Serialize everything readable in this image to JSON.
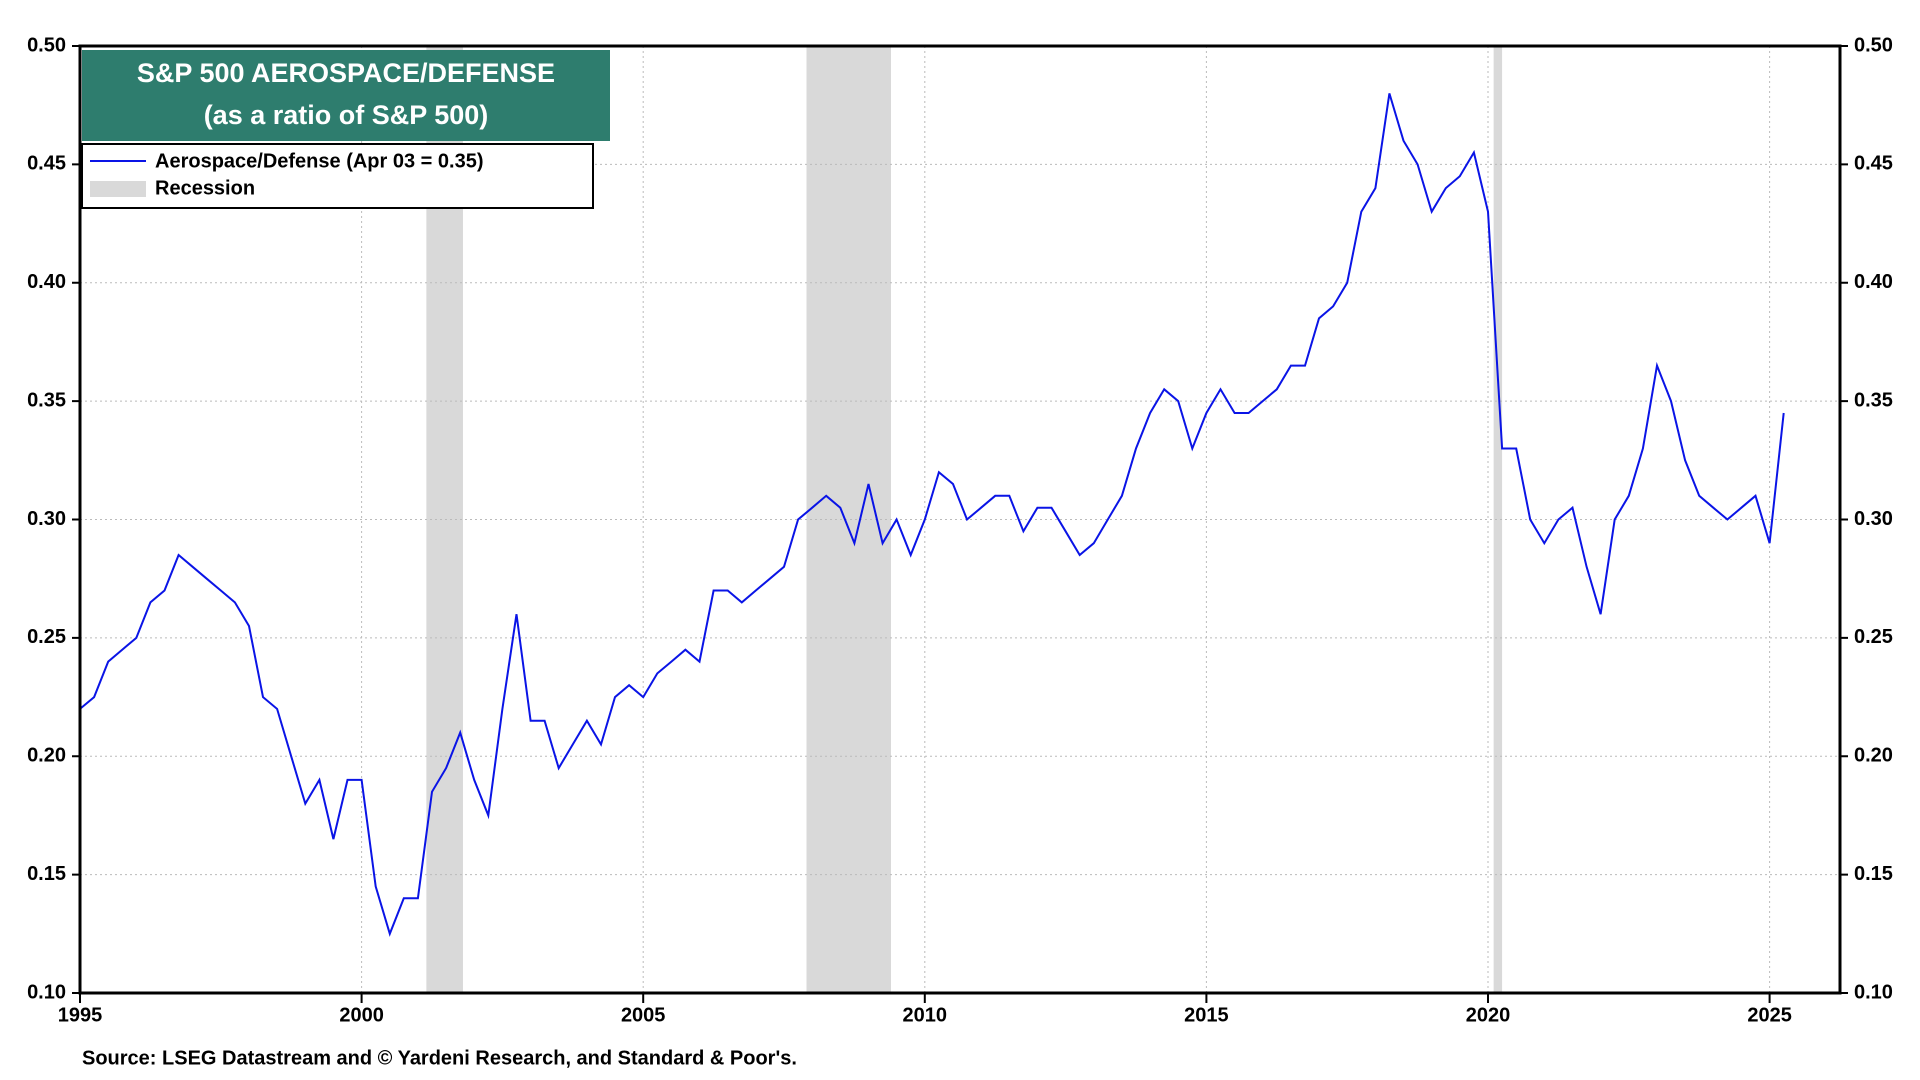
{
  "chart_data": {
    "type": "line",
    "title": "S&P 500 AEROSPACE/DEFENSE",
    "subtitle": "(as a ratio of S&P 500)",
    "source": "Source: LSEG Datastream and © Yardeni Research, and Standard & Poor's.",
    "x": [
      1995.0,
      1995.25,
      1995.5,
      1995.75,
      1996.0,
      1996.25,
      1996.5,
      1996.75,
      1997.0,
      1997.25,
      1997.5,
      1997.75,
      1998.0,
      1998.25,
      1998.5,
      1998.75,
      1999.0,
      1999.25,
      1999.5,
      1999.75,
      2000.0,
      2000.25,
      2000.5,
      2000.75,
      2001.0,
      2001.25,
      2001.5,
      2001.75,
      2002.0,
      2002.25,
      2002.5,
      2002.75,
      2003.0,
      2003.25,
      2003.5,
      2003.75,
      2004.0,
      2004.25,
      2004.5,
      2004.75,
      2005.0,
      2005.25,
      2005.5,
      2005.75,
      2006.0,
      2006.25,
      2006.5,
      2006.75,
      2007.0,
      2007.25,
      2007.5,
      2007.75,
      2008.0,
      2008.25,
      2008.5,
      2008.75,
      2009.0,
      2009.25,
      2009.5,
      2009.75,
      2010.0,
      2010.25,
      2010.5,
      2010.75,
      2011.0,
      2011.25,
      2011.5,
      2011.75,
      2012.0,
      2012.25,
      2012.5,
      2012.75,
      2013.0,
      2013.25,
      2013.5,
      2013.75,
      2014.0,
      2014.25,
      2014.5,
      2014.75,
      2015.0,
      2015.25,
      2015.5,
      2015.75,
      2016.0,
      2016.25,
      2016.5,
      2016.75,
      2017.0,
      2017.25,
      2017.5,
      2017.75,
      2018.0,
      2018.25,
      2018.5,
      2018.75,
      2019.0,
      2019.25,
      2019.5,
      2019.75,
      2020.0,
      2020.25,
      2020.5,
      2020.75,
      2021.0,
      2021.25,
      2021.5,
      2021.75,
      2022.0,
      2022.25,
      2022.5,
      2022.75,
      2023.0,
      2023.25,
      2023.5,
      2023.75,
      2024.0,
      2024.25,
      2024.5,
      2024.75,
      2025.0,
      2025.25
    ],
    "series": [
      {
        "name": "Aerospace/Defense (Apr 03 = 0.35)",
        "color": "#0a14e6",
        "values": [
          0.22,
          0.225,
          0.24,
          0.245,
          0.25,
          0.265,
          0.27,
          0.285,
          0.28,
          0.275,
          0.27,
          0.265,
          0.255,
          0.225,
          0.22,
          0.2,
          0.18,
          0.19,
          0.165,
          0.19,
          0.19,
          0.145,
          0.125,
          0.14,
          0.14,
          0.185,
          0.195,
          0.21,
          0.19,
          0.175,
          0.22,
          0.26,
          0.215,
          0.215,
          0.195,
          0.205,
          0.215,
          0.205,
          0.225,
          0.23,
          0.225,
          0.235,
          0.24,
          0.245,
          0.24,
          0.27,
          0.27,
          0.265,
          0.27,
          0.275,
          0.28,
          0.3,
          0.305,
          0.31,
          0.305,
          0.29,
          0.315,
          0.29,
          0.3,
          0.285,
          0.3,
          0.32,
          0.315,
          0.3,
          0.305,
          0.31,
          0.31,
          0.295,
          0.305,
          0.305,
          0.295,
          0.285,
          0.29,
          0.3,
          0.31,
          0.33,
          0.345,
          0.355,
          0.35,
          0.33,
          0.345,
          0.355,
          0.345,
          0.345,
          0.35,
          0.355,
          0.365,
          0.365,
          0.385,
          0.39,
          0.4,
          0.43,
          0.44,
          0.48,
          0.46,
          0.45,
          0.43,
          0.44,
          0.445,
          0.455,
          0.43,
          0.33,
          0.33,
          0.3,
          0.29,
          0.3,
          0.305,
          0.28,
          0.26,
          0.3,
          0.31,
          0.33,
          0.365,
          0.35,
          0.325,
          0.31,
          0.305,
          0.3,
          0.305,
          0.31,
          0.29,
          0.345
        ]
      }
    ],
    "recession": {
      "name": "Recession",
      "color": "#d9d9d9",
      "periods": [
        [
          2001.15,
          2001.8
        ],
        [
          2007.9,
          2009.4
        ],
        [
          2020.1,
          2020.25
        ]
      ]
    },
    "xlim": [
      1995,
      2026.25
    ],
    "xticks": [
      1995,
      2000,
      2005,
      2010,
      2015,
      2020,
      2025
    ],
    "ylim": [
      0.1,
      0.5
    ],
    "yticks": [
      {
        "value": 0.1,
        "label": "0.10"
      },
      {
        "value": 0.15,
        "label": "0.15"
      },
      {
        "value": 0.2,
        "label": "0.20"
      },
      {
        "value": 0.25,
        "label": "0.25"
      },
      {
        "value": 0.3,
        "label": "0.30"
      },
      {
        "value": 0.35,
        "label": "0.35"
      },
      {
        "value": 0.4,
        "label": "0.40"
      },
      {
        "value": 0.45,
        "label": "0.45"
      },
      {
        "value": 0.5,
        "label": "0.50"
      }
    ],
    "y2lim": [
      0.1,
      0.5
    ],
    "y2ticks": [
      {
        "value": 0.1,
        "label": "0.10"
      },
      {
        "value": 0.15,
        "label": "0.15"
      },
      {
        "value": 0.2,
        "label": "0.20"
      },
      {
        "value": 0.25,
        "label": "0.25"
      },
      {
        "value": 0.3,
        "label": "0.30"
      },
      {
        "value": 0.35,
        "label": "0.35"
      },
      {
        "value": 0.4,
        "label": "0.40"
      },
      {
        "value": 0.45,
        "label": "0.45"
      },
      {
        "value": 0.5,
        "label": "0.50"
      }
    ],
    "grid": true,
    "title_color": "#2e7d6e",
    "legend": "upper left"
  }
}
